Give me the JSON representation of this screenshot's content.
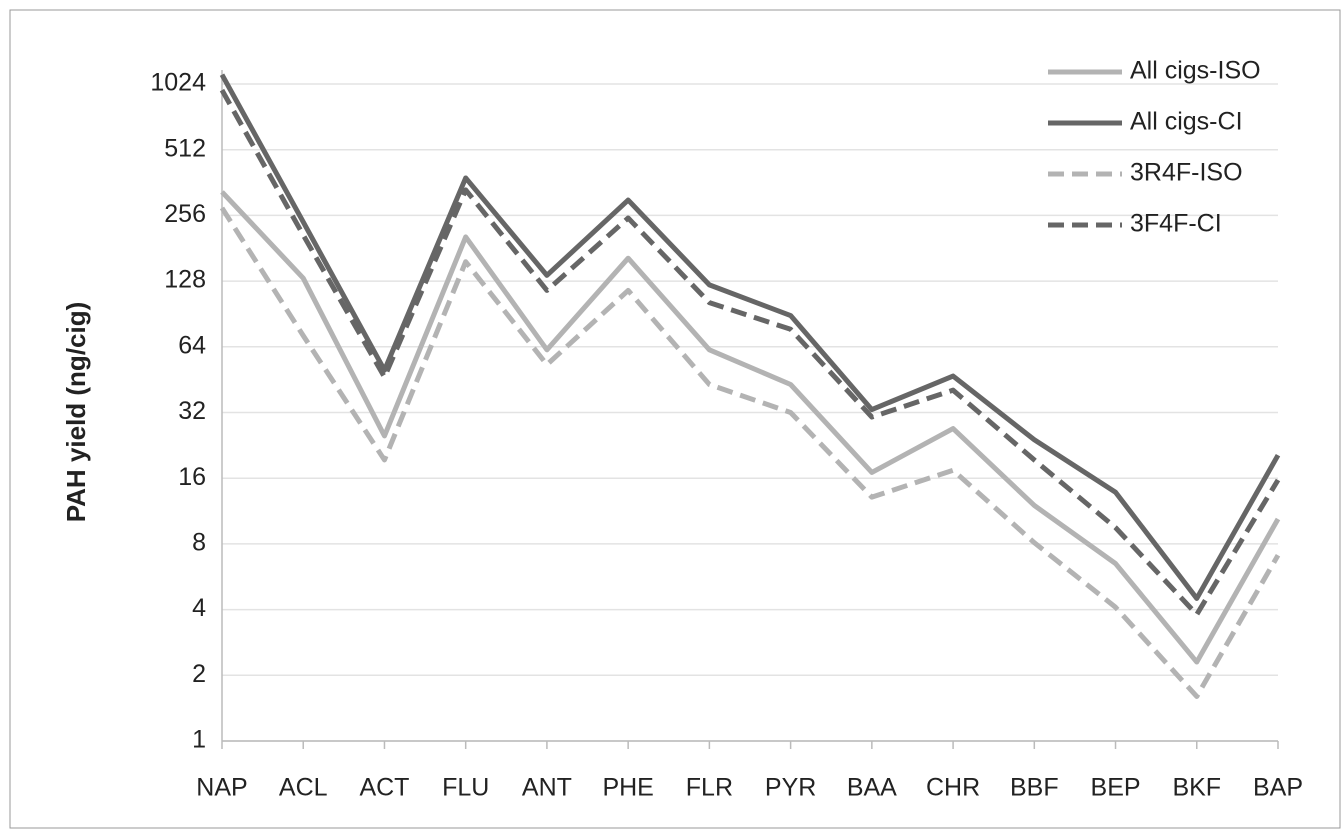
{
  "chart_data": {
    "type": "line",
    "y_label": "PAH yield (ng/cig)",
    "categories": [
      "NAP",
      "ACL",
      "ACT",
      "FLU",
      "ANT",
      "PHE",
      "FLR",
      "PYR",
      "BAA",
      "CHR",
      "BBF",
      "BEP",
      "BKF",
      "BAP"
    ],
    "series": [
      {
        "name": "All cigs-ISO",
        "color": "#b3b3b3",
        "dash": false,
        "values": [
          328,
          132,
          25,
          204,
          62,
          163,
          62,
          43,
          17,
          27,
          12,
          6.5,
          2.3,
          10.4
        ]
      },
      {
        "name": "All cigs-CI",
        "color": "#666666",
        "dash": false,
        "values": [
          1130,
          239,
          50,
          380,
          136,
          301,
          123,
          89,
          33,
          47,
          24,
          13.8,
          4.5,
          20.4
        ]
      },
      {
        "name": "3R4F-ISO",
        "color": "#b3b3b3",
        "dash": true,
        "values": [
          277,
          72,
          19.4,
          157,
          53,
          116,
          43,
          32,
          13.1,
          17.4,
          8.1,
          4.1,
          1.6,
          7.1
        ]
      },
      {
        "name": "3F4F-CI",
        "color": "#666666",
        "dash": true,
        "values": [
          960,
          208,
          46.5,
          335,
          116,
          249,
          102,
          77,
          30.5,
          40.5,
          19.4,
          9.5,
          3.8,
          15.7
        ]
      }
    ],
    "ylim": [
      1,
      1024
    ],
    "yticks": [
      1,
      2,
      4,
      8,
      16,
      32,
      64,
      128,
      256,
      512,
      1024
    ],
    "log_scale": true,
    "log_base": 2,
    "grid": true,
    "legend": "top-right"
  }
}
